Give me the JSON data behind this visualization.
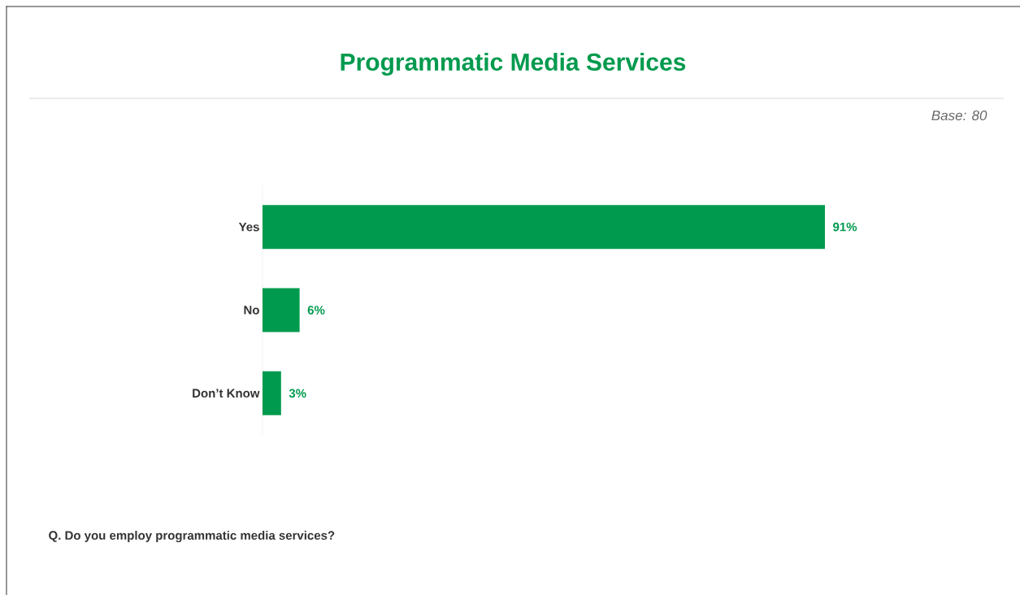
{
  "chart_data": {
    "type": "bar",
    "orientation": "horizontal",
    "title": "Programmatic Media Services",
    "categories": [
      "Yes",
      "No",
      "Don’t Know"
    ],
    "values": [
      91,
      6,
      3
    ],
    "value_labels": [
      "91%",
      "6%",
      "3%"
    ],
    "color": "#009a4e",
    "annotations": [
      "Base: 80",
      "Q. Do you employ programmatic media services?"
    ]
  }
}
